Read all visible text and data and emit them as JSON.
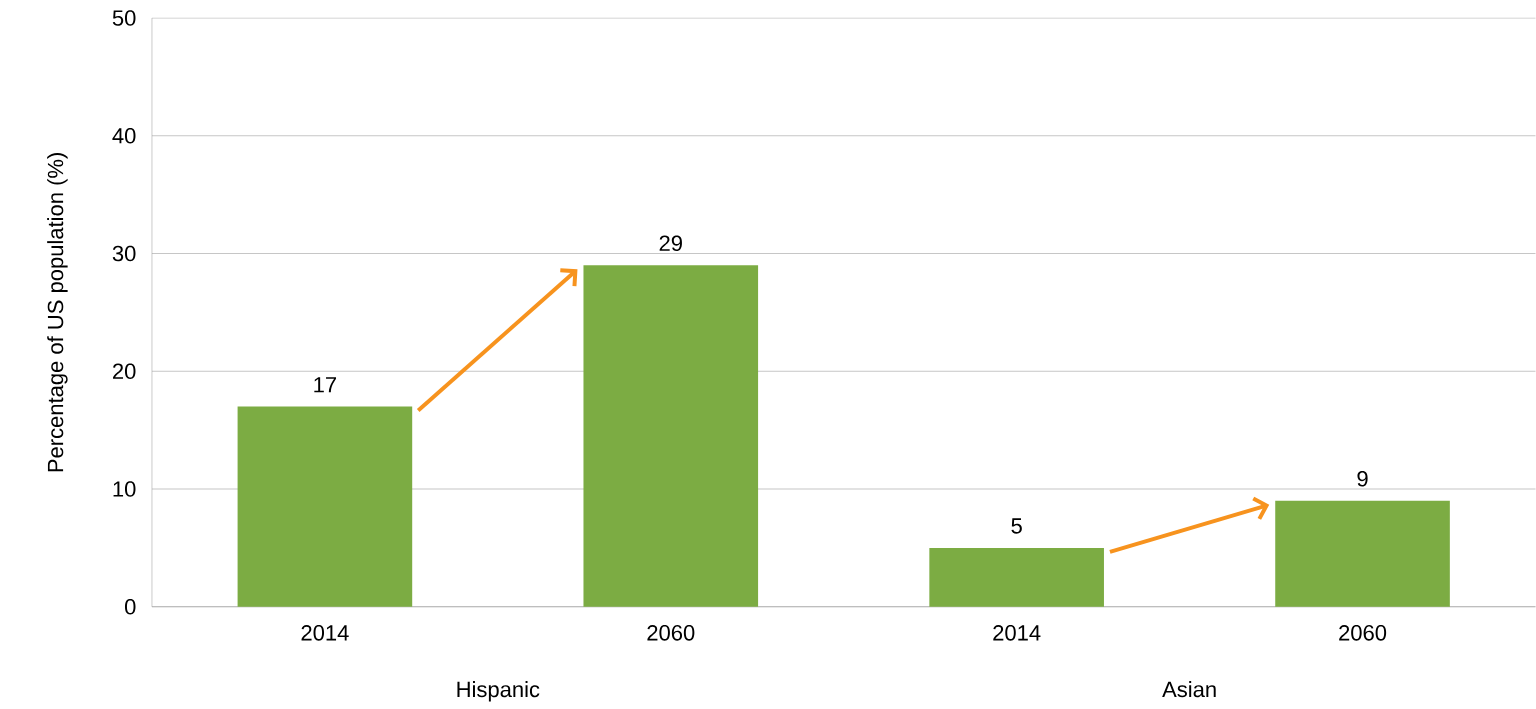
{
  "chart_data": {
    "type": "bar",
    "ylabel": "Percentage of US population (%)",
    "categories": [
      "2014",
      "2060",
      "2014",
      "2060"
    ],
    "values": [
      17,
      29,
      5,
      9
    ],
    "color": "#7cac43",
    "ylim": [
      0,
      50
    ],
    "yticks": [
      0,
      10,
      20,
      30,
      40,
      50
    ],
    "grid": "y",
    "data_labels": true,
    "annotations": [
      "Hispanic",
      "Asian"
    ]
  }
}
